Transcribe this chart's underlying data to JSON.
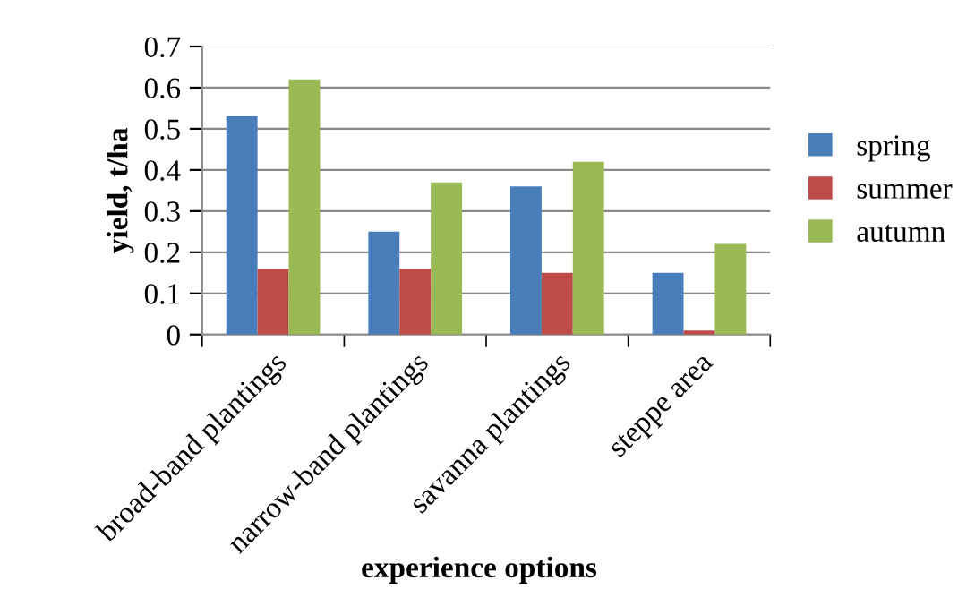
{
  "chart_data": {
    "type": "bar",
    "xlabel": "experience options",
    "ylabel": "yield, t/ha",
    "categories": [
      "broad-band plantings",
      "narrow-band plantings",
      "savanna plantings",
      "steppe area"
    ],
    "series": [
      {
        "name": "spring",
        "color": "#4a7ebb",
        "values": [
          0.53,
          0.25,
          0.36,
          0.15
        ]
      },
      {
        "name": "summer",
        "color": "#be4b48",
        "values": [
          0.16,
          0.16,
          0.15,
          0.01
        ]
      },
      {
        "name": "autumn",
        "color": "#98b954",
        "values": [
          0.62,
          0.37,
          0.42,
          0.22
        ]
      }
    ],
    "ylim": [
      0,
      0.7
    ],
    "yticks": [
      0,
      0.1,
      0.2,
      0.3,
      0.4,
      0.5,
      0.6,
      0.7
    ],
    "grid": "y",
    "legend": "right"
  }
}
